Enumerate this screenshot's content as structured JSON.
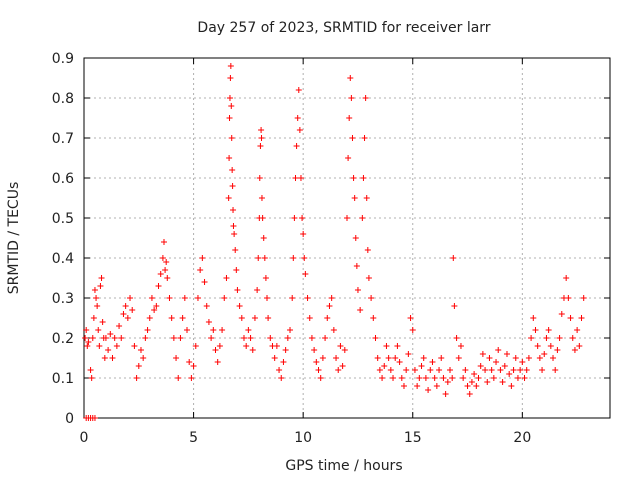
{
  "chart_data": {
    "type": "scatter",
    "title": "Day 257 of 2023, SRMTID for receiver larr",
    "xlabel": "GPS time / hours",
    "ylabel": "SRMTID / TECUs",
    "xlim": [
      0,
      24
    ],
    "ylim": [
      0,
      0.9
    ],
    "xticks": [
      0,
      5,
      10,
      15,
      20
    ],
    "yticks": [
      0,
      0.1,
      0.2,
      0.3,
      0.4,
      0.5,
      0.6,
      0.7,
      0.8,
      0.9
    ],
    "xtick_labels": [
      "0",
      "5",
      "10",
      "15",
      "20"
    ],
    "ytick_labels": [
      "0",
      "0.1",
      "0.2",
      "0.3",
      "0.4",
      "0.5",
      "0.6",
      "0.7",
      "0.8",
      "0.9"
    ],
    "grid": true,
    "marker": "+",
    "series": [
      {
        "name": "SRMTID",
        "color": "#ff0000",
        "points": [
          [
            0.1,
            0.0
          ],
          [
            0.2,
            0.0
          ],
          [
            0.3,
            0.0
          ],
          [
            0.4,
            0.0
          ],
          [
            0.5,
            0.0
          ],
          [
            0.05,
            0.2
          ],
          [
            0.1,
            0.22
          ],
          [
            0.15,
            0.18
          ],
          [
            0.2,
            0.19
          ],
          [
            0.3,
            0.12
          ],
          [
            0.35,
            0.1
          ],
          [
            0.4,
            0.2
          ],
          [
            0.45,
            0.25
          ],
          [
            0.5,
            0.32
          ],
          [
            0.55,
            0.3
          ],
          [
            0.6,
            0.28
          ],
          [
            0.65,
            0.22
          ],
          [
            0.7,
            0.18
          ],
          [
            0.75,
            0.33
          ],
          [
            0.8,
            0.35
          ],
          [
            0.85,
            0.24
          ],
          [
            0.9,
            0.2
          ],
          [
            0.95,
            0.15
          ],
          [
            1.0,
            0.2
          ],
          [
            1.1,
            0.17
          ],
          [
            1.2,
            0.21
          ],
          [
            1.3,
            0.15
          ],
          [
            1.4,
            0.2
          ],
          [
            1.5,
            0.18
          ],
          [
            1.6,
            0.23
          ],
          [
            1.7,
            0.2
          ],
          [
            1.8,
            0.26
          ],
          [
            1.9,
            0.28
          ],
          [
            2.0,
            0.25
          ],
          [
            2.1,
            0.3
          ],
          [
            2.2,
            0.27
          ],
          [
            2.3,
            0.18
          ],
          [
            2.4,
            0.1
          ],
          [
            2.5,
            0.13
          ],
          [
            2.6,
            0.17
          ],
          [
            2.7,
            0.15
          ],
          [
            2.8,
            0.2
          ],
          [
            2.9,
            0.22
          ],
          [
            3.0,
            0.25
          ],
          [
            3.1,
            0.3
          ],
          [
            3.2,
            0.27
          ],
          [
            3.3,
            0.28
          ],
          [
            3.4,
            0.33
          ],
          [
            3.5,
            0.36
          ],
          [
            3.6,
            0.4
          ],
          [
            3.65,
            0.44
          ],
          [
            3.7,
            0.37
          ],
          [
            3.75,
            0.39
          ],
          [
            3.8,
            0.35
          ],
          [
            3.9,
            0.3
          ],
          [
            4.0,
            0.25
          ],
          [
            4.1,
            0.2
          ],
          [
            4.2,
            0.15
          ],
          [
            4.3,
            0.1
          ],
          [
            4.4,
            0.2
          ],
          [
            4.5,
            0.25
          ],
          [
            4.6,
            0.3
          ],
          [
            4.7,
            0.22
          ],
          [
            4.8,
            0.14
          ],
          [
            4.9,
            0.1
          ],
          [
            5.0,
            0.13
          ],
          [
            5.1,
            0.18
          ],
          [
            5.2,
            0.3
          ],
          [
            5.3,
            0.37
          ],
          [
            5.4,
            0.4
          ],
          [
            5.5,
            0.34
          ],
          [
            5.6,
            0.28
          ],
          [
            5.7,
            0.24
          ],
          [
            5.8,
            0.2
          ],
          [
            5.9,
            0.22
          ],
          [
            6.0,
            0.17
          ],
          [
            6.1,
            0.14
          ],
          [
            6.2,
            0.18
          ],
          [
            6.3,
            0.22
          ],
          [
            6.4,
            0.3
          ],
          [
            6.5,
            0.35
          ],
          [
            6.6,
            0.55
          ],
          [
            6.62,
            0.65
          ],
          [
            6.64,
            0.75
          ],
          [
            6.66,
            0.8
          ],
          [
            6.68,
            0.85
          ],
          [
            6.7,
            0.88
          ],
          [
            6.72,
            0.78
          ],
          [
            6.74,
            0.7
          ],
          [
            6.76,
            0.62
          ],
          [
            6.78,
            0.58
          ],
          [
            6.8,
            0.52
          ],
          [
            6.82,
            0.48
          ],
          [
            6.85,
            0.46
          ],
          [
            6.9,
            0.42
          ],
          [
            6.95,
            0.37
          ],
          [
            7.0,
            0.32
          ],
          [
            7.1,
            0.28
          ],
          [
            7.2,
            0.25
          ],
          [
            7.3,
            0.2
          ],
          [
            7.4,
            0.18
          ],
          [
            7.5,
            0.22
          ],
          [
            7.6,
            0.2
          ],
          [
            7.7,
            0.17
          ],
          [
            7.8,
            0.25
          ],
          [
            7.9,
            0.32
          ],
          [
            7.95,
            0.4
          ],
          [
            8.0,
            0.5
          ],
          [
            8.02,
            0.6
          ],
          [
            8.05,
            0.68
          ],
          [
            8.08,
            0.72
          ],
          [
            8.1,
            0.7
          ],
          [
            8.12,
            0.55
          ],
          [
            8.15,
            0.5
          ],
          [
            8.2,
            0.45
          ],
          [
            8.25,
            0.4
          ],
          [
            8.3,
            0.35
          ],
          [
            8.35,
            0.3
          ],
          [
            8.4,
            0.25
          ],
          [
            8.5,
            0.2
          ],
          [
            8.6,
            0.18
          ],
          [
            8.7,
            0.15
          ],
          [
            8.8,
            0.18
          ],
          [
            8.9,
            0.12
          ],
          [
            9.0,
            0.1
          ],
          [
            9.1,
            0.14
          ],
          [
            9.2,
            0.17
          ],
          [
            9.3,
            0.2
          ],
          [
            9.4,
            0.22
          ],
          [
            9.5,
            0.3
          ],
          [
            9.55,
            0.4
          ],
          [
            9.6,
            0.5
          ],
          [
            9.65,
            0.6
          ],
          [
            9.7,
            0.68
          ],
          [
            9.75,
            0.75
          ],
          [
            9.8,
            0.82
          ],
          [
            9.85,
            0.72
          ],
          [
            9.9,
            0.6
          ],
          [
            9.95,
            0.5
          ],
          [
            10.0,
            0.46
          ],
          [
            10.05,
            0.4
          ],
          [
            10.1,
            0.36
          ],
          [
            10.2,
            0.3
          ],
          [
            10.3,
            0.25
          ],
          [
            10.4,
            0.2
          ],
          [
            10.5,
            0.17
          ],
          [
            10.6,
            0.14
          ],
          [
            10.7,
            0.12
          ],
          [
            10.8,
            0.1
          ],
          [
            10.9,
            0.15
          ],
          [
            11.0,
            0.2
          ],
          [
            11.1,
            0.25
          ],
          [
            11.2,
            0.28
          ],
          [
            11.3,
            0.3
          ],
          [
            11.4,
            0.22
          ],
          [
            11.5,
            0.15
          ],
          [
            11.6,
            0.12
          ],
          [
            11.7,
            0.18
          ],
          [
            11.8,
            0.13
          ],
          [
            11.9,
            0.17
          ],
          [
            12.0,
            0.5
          ],
          [
            12.05,
            0.65
          ],
          [
            12.1,
            0.75
          ],
          [
            12.15,
            0.85
          ],
          [
            12.2,
            0.8
          ],
          [
            12.25,
            0.7
          ],
          [
            12.3,
            0.6
          ],
          [
            12.35,
            0.55
          ],
          [
            12.4,
            0.45
          ],
          [
            12.45,
            0.38
          ],
          [
            12.5,
            0.32
          ],
          [
            12.6,
            0.27
          ],
          [
            12.7,
            0.5
          ],
          [
            12.75,
            0.6
          ],
          [
            12.8,
            0.7
          ],
          [
            12.85,
            0.8
          ],
          [
            12.9,
            0.55
          ],
          [
            12.95,
            0.42
          ],
          [
            13.0,
            0.35
          ],
          [
            13.1,
            0.3
          ],
          [
            13.2,
            0.25
          ],
          [
            13.3,
            0.2
          ],
          [
            13.4,
            0.15
          ],
          [
            13.5,
            0.12
          ],
          [
            13.6,
            0.1
          ],
          [
            13.7,
            0.13
          ],
          [
            13.8,
            0.18
          ],
          [
            13.9,
            0.15
          ],
          [
            14.0,
            0.12
          ],
          [
            14.1,
            0.1
          ],
          [
            14.2,
            0.15
          ],
          [
            14.3,
            0.18
          ],
          [
            14.4,
            0.14
          ],
          [
            14.5,
            0.1
          ],
          [
            14.6,
            0.08
          ],
          [
            14.7,
            0.12
          ],
          [
            14.8,
            0.16
          ],
          [
            14.9,
            0.25
          ],
          [
            15.0,
            0.22
          ],
          [
            15.1,
            0.12
          ],
          [
            15.2,
            0.08
          ],
          [
            15.3,
            0.1
          ],
          [
            15.4,
            0.13
          ],
          [
            15.5,
            0.15
          ],
          [
            15.6,
            0.1
          ],
          [
            15.7,
            0.07
          ],
          [
            15.8,
            0.12
          ],
          [
            15.9,
            0.14
          ],
          [
            16.0,
            0.1
          ],
          [
            16.1,
            0.08
          ],
          [
            16.2,
            0.12
          ],
          [
            16.3,
            0.15
          ],
          [
            16.4,
            0.1
          ],
          [
            16.5,
            0.06
          ],
          [
            16.6,
            0.09
          ],
          [
            16.7,
            0.12
          ],
          [
            16.8,
            0.1
          ],
          [
            16.85,
            0.4
          ],
          [
            16.9,
            0.28
          ],
          [
            17.0,
            0.2
          ],
          [
            17.1,
            0.15
          ],
          [
            17.2,
            0.18
          ],
          [
            17.3,
            0.1
          ],
          [
            17.4,
            0.12
          ],
          [
            17.5,
            0.08
          ],
          [
            17.6,
            0.06
          ],
          [
            17.7,
            0.09
          ],
          [
            17.8,
            0.11
          ],
          [
            17.9,
            0.08
          ],
          [
            18.0,
            0.1
          ],
          [
            18.1,
            0.13
          ],
          [
            18.2,
            0.16
          ],
          [
            18.3,
            0.12
          ],
          [
            18.4,
            0.09
          ],
          [
            18.5,
            0.15
          ],
          [
            18.6,
            0.12
          ],
          [
            18.7,
            0.1
          ],
          [
            18.8,
            0.14
          ],
          [
            18.9,
            0.17
          ],
          [
            19.0,
            0.12
          ],
          [
            19.1,
            0.09
          ],
          [
            19.2,
            0.13
          ],
          [
            19.3,
            0.16
          ],
          [
            19.4,
            0.11
          ],
          [
            19.5,
            0.08
          ],
          [
            19.6,
            0.12
          ],
          [
            19.7,
            0.15
          ],
          [
            19.8,
            0.1
          ],
          [
            19.9,
            0.12
          ],
          [
            20.0,
            0.14
          ],
          [
            20.1,
            0.1
          ],
          [
            20.2,
            0.12
          ],
          [
            20.3,
            0.15
          ],
          [
            20.4,
            0.2
          ],
          [
            20.5,
            0.25
          ],
          [
            20.6,
            0.22
          ],
          [
            20.7,
            0.18
          ],
          [
            20.8,
            0.15
          ],
          [
            20.9,
            0.12
          ],
          [
            21.0,
            0.16
          ],
          [
            21.1,
            0.2
          ],
          [
            21.2,
            0.22
          ],
          [
            21.3,
            0.18
          ],
          [
            21.4,
            0.15
          ],
          [
            21.5,
            0.12
          ],
          [
            21.6,
            0.17
          ],
          [
            21.7,
            0.2
          ],
          [
            21.8,
            0.26
          ],
          [
            21.9,
            0.3
          ],
          [
            22.0,
            0.35
          ],
          [
            22.1,
            0.3
          ],
          [
            22.2,
            0.25
          ],
          [
            22.3,
            0.2
          ],
          [
            22.4,
            0.17
          ],
          [
            22.5,
            0.22
          ],
          [
            22.6,
            0.18
          ],
          [
            22.7,
            0.25
          ],
          [
            22.8,
            0.3
          ]
        ]
      }
    ]
  }
}
